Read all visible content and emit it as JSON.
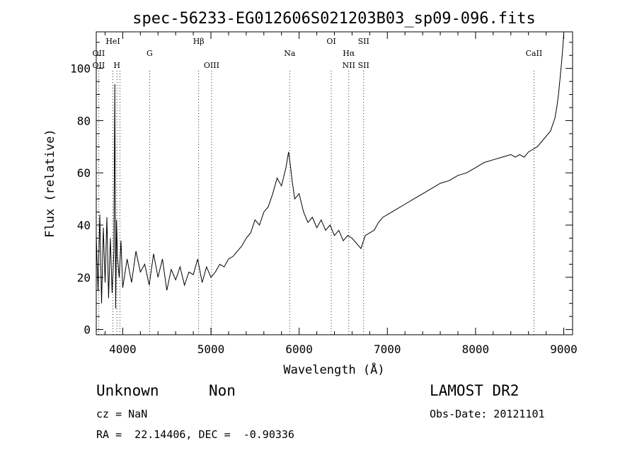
{
  "chart_data": {
    "type": "line",
    "title": "spec-56233-EG012606S021203B03_sp09-096.fits",
    "xlabel": "Wavelength (Å)",
    "ylabel": "Flux (relative)",
    "xlim": [
      3700,
      9100
    ],
    "ylim": [
      -2,
      114
    ],
    "x_ticks": [
      4000,
      5000,
      6000,
      7000,
      8000,
      9000
    ],
    "y_ticks": [
      0,
      20,
      40,
      60,
      80,
      100
    ],
    "grid": false,
    "series": [
      {
        "x": [
          3700,
          3720,
          3740,
          3760,
          3780,
          3800,
          3820,
          3840,
          3860,
          3880,
          3900,
          3910,
          3920,
          3930,
          3940,
          3960,
          3980,
          4000,
          4050,
          4100,
          4150,
          4200,
          4250,
          4300,
          4350,
          4400,
          4450,
          4500,
          4550,
          4600,
          4650,
          4700,
          4750,
          4800,
          4850,
          4900,
          4950,
          5000,
          5050,
          5100,
          5150,
          5200,
          5250,
          5300,
          5350,
          5400,
          5450,
          5500,
          5550,
          5600,
          5650,
          5700,
          5750,
          5800,
          5850,
          5880,
          5900,
          5920,
          5950,
          6000,
          6050,
          6100,
          6150,
          6200,
          6250,
          6300,
          6350,
          6400,
          6450,
          6500,
          6550,
          6600,
          6650,
          6700,
          6750,
          6800,
          6850,
          6900,
          6950,
          7000,
          7100,
          7200,
          7300,
          7400,
          7500,
          7600,
          7700,
          7800,
          7900,
          8000,
          8050,
          8100,
          8200,
          8300,
          8400,
          8450,
          8500,
          8550,
          8600,
          8650,
          8700,
          8750,
          8800,
          8850,
          8900,
          8920,
          8940,
          8960,
          8980,
          9000
        ],
        "y": [
          36,
          15,
          44,
          10,
          39,
          18,
          43,
          12,
          35,
          14,
          30,
          94,
          8,
          42,
          28,
          20,
          34,
          16,
          27,
          18,
          30,
          22,
          25,
          17,
          29,
          20,
          27,
          15,
          23,
          19,
          24,
          17,
          22,
          21,
          27,
          18,
          24,
          20,
          22,
          25,
          24,
          27,
          28,
          30,
          32,
          35,
          37,
          42,
          40,
          45,
          47,
          52,
          58,
          55,
          62,
          68,
          63,
          57,
          50,
          52,
          45,
          41,
          43,
          39,
          42,
          38,
          40,
          36,
          38,
          34,
          36,
          35,
          33,
          31,
          36,
          37,
          38,
          41,
          43,
          44,
          46,
          48,
          50,
          52,
          54,
          56,
          57,
          59,
          60,
          62,
          63,
          64,
          65,
          66,
          67,
          66,
          67,
          66,
          68,
          69,
          70,
          72,
          74,
          76,
          81,
          85,
          90,
          97,
          104,
          113
        ]
      }
    ],
    "lines": [
      {
        "x": 3727,
        "top": "OII",
        "top_row": 1,
        "bottom": "OII"
      },
      {
        "x": 3889,
        "top": "HeI",
        "top_row": 0,
        "bottom": ""
      },
      {
        "x": 3934,
        "top": "",
        "top_row": 0,
        "bottom": "H"
      },
      {
        "x": 3968,
        "top": "",
        "top_row": 0,
        "bottom": ""
      },
      {
        "x": 4305,
        "top": "G",
        "top_row": 1,
        "bottom": ""
      },
      {
        "x": 4861,
        "top": "Hβ",
        "top_row": 0,
        "bottom": ""
      },
      {
        "x": 5007,
        "top": "",
        "top_row": 0,
        "bottom": "OIII"
      },
      {
        "x": 5893,
        "top": "Na",
        "top_row": 1,
        "bottom": ""
      },
      {
        "x": 6364,
        "top": "OI",
        "top_row": 0,
        "bottom": ""
      },
      {
        "x": 6563,
        "top": "Hα",
        "top_row": 1,
        "bottom": "NII"
      },
      {
        "x": 6731,
        "top": "SII",
        "top_row": 0,
        "bottom": "SII"
      },
      {
        "x": 8662,
        "top": "CaII",
        "top_row": 1,
        "bottom": ""
      }
    ]
  },
  "info": {
    "class": "Unknown",
    "subclass": "Non",
    "survey": "LAMOST DR2",
    "cz": "cz = NaN",
    "obs_date": "Obs-Date: 20121101",
    "coords": "RA =  22.14406, DEC =  -0.90336"
  }
}
